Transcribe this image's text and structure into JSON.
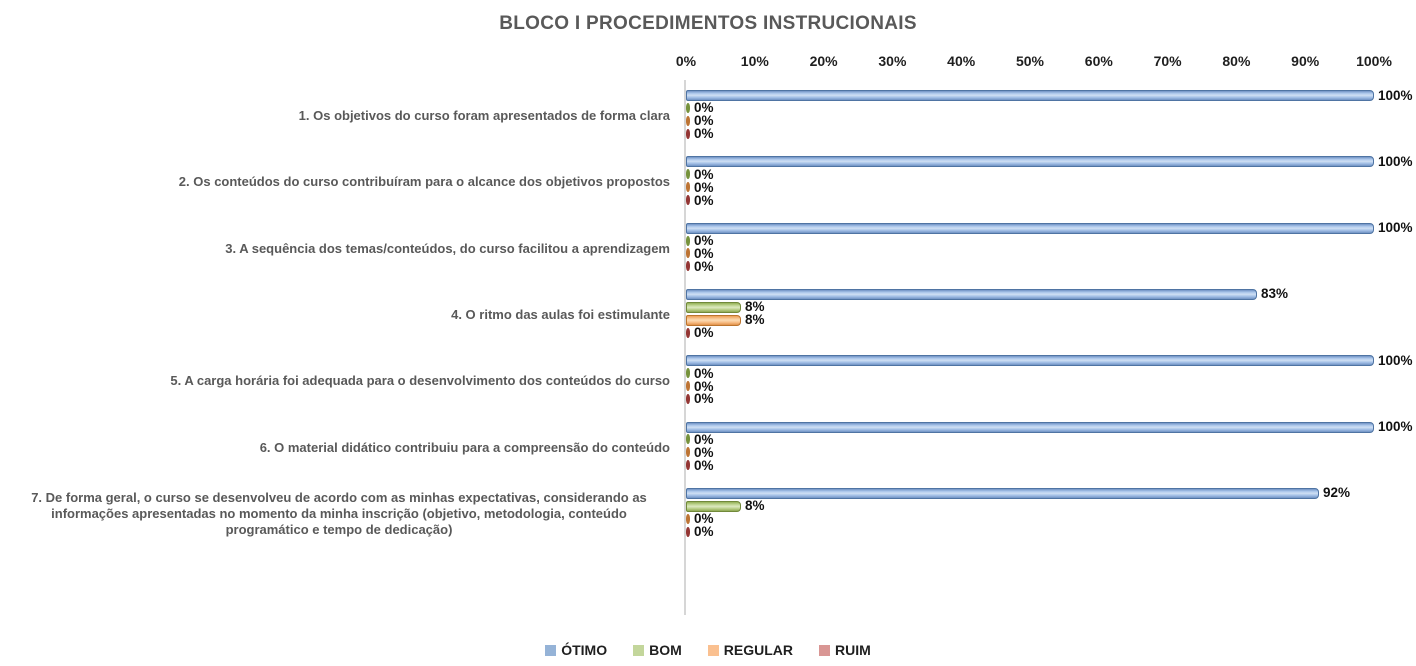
{
  "chart_data": {
    "type": "bar",
    "orientation": "horizontal",
    "title": "BLOCO I PROCEDIMENTOS INSTRUCIONAIS",
    "categories": [
      "1. Os objetivos do curso foram apresentados de forma clara",
      "2. Os conteúdos do curso contribuíram para o alcance dos objetivos propostos",
      "3. A sequência dos temas/conteúdos, do curso facilitou a aprendizagem",
      "4. O ritmo das aulas foi estimulante",
      "5. A carga horária foi adequada para o desenvolvimento dos conteúdos do curso",
      "6. O material didático contribuiu para a compreensão do conteúdo",
      "7. De forma geral, o curso se desenvolveu de acordo com as minhas expectativas, considerando as informações apresentadas no momento da minha inscrição (objetivo, metodologia, conteúdo programático e tempo de dedicação)"
    ],
    "series": [
      {
        "name": "ÓTIMO",
        "color": "#95B3D7",
        "values": [
          100,
          100,
          100,
          83,
          100,
          100,
          92
        ]
      },
      {
        "name": "BOM",
        "color": "#C3D69B",
        "values": [
          0,
          0,
          0,
          8,
          0,
          0,
          8
        ]
      },
      {
        "name": "REGULAR",
        "color": "#FAC090",
        "values": [
          0,
          0,
          0,
          8,
          0,
          0,
          0
        ]
      },
      {
        "name": "RUIM",
        "color": "#D99694",
        "values": [
          0,
          0,
          0,
          0,
          0,
          0,
          0
        ]
      }
    ],
    "data_label_format": "percent",
    "x_axis": {
      "min": 0,
      "max": 100,
      "tick_labels": [
        "0%",
        "10%",
        "20%",
        "30%",
        "40%",
        "50%",
        "60%",
        "70%",
        "80%",
        "90%",
        "100%"
      ],
      "position": "top"
    },
    "legend": {
      "position": "bottom",
      "entries": [
        "ÓTIMO",
        "BOM",
        "REGULAR",
        "RUIM"
      ]
    },
    "grid": "off",
    "text_colors": {
      "title": "#595959",
      "labels": "#111111"
    }
  }
}
